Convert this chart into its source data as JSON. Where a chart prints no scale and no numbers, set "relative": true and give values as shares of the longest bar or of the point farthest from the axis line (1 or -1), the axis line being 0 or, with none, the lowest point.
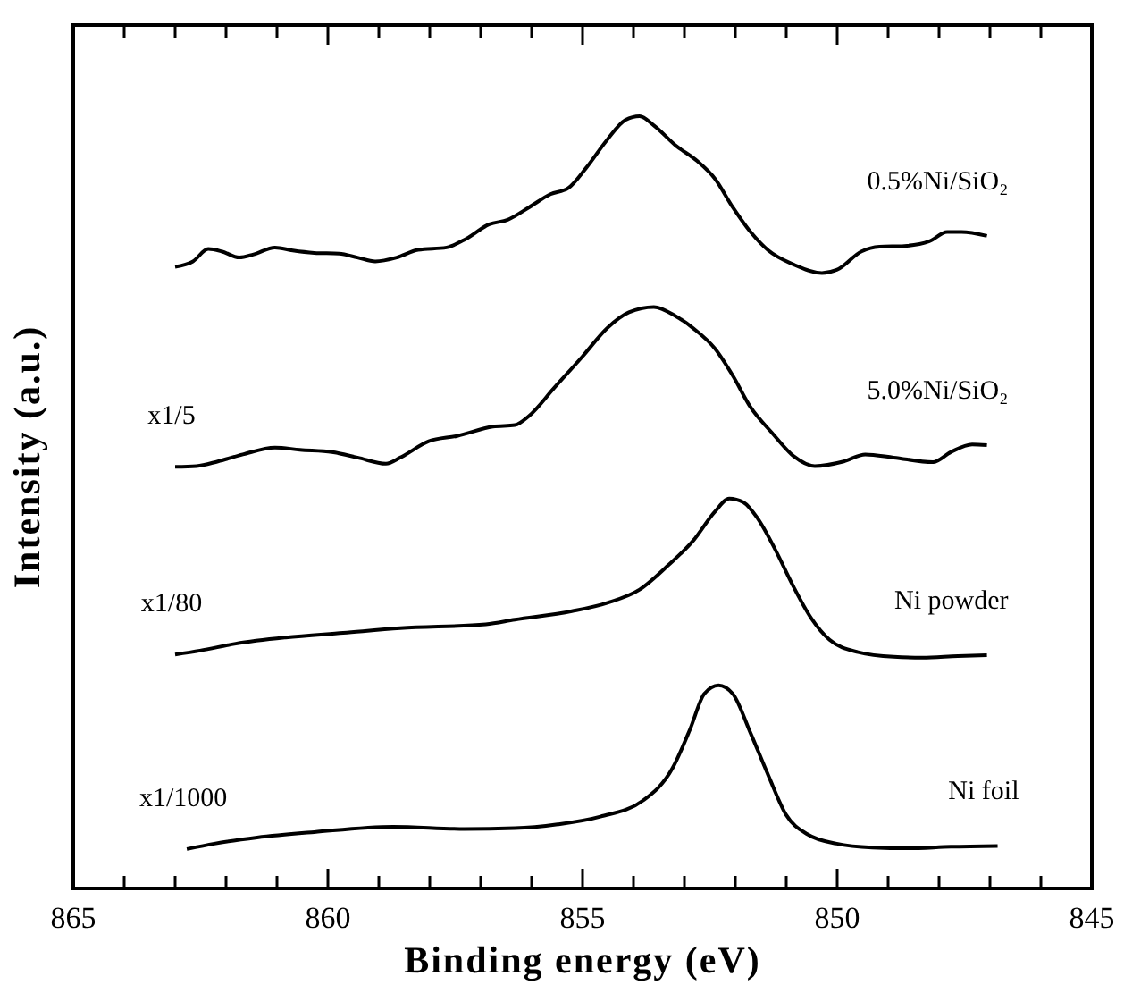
{
  "chart_data": {
    "type": "line",
    "relative": true,
    "xlabel": "Binding energy (eV)",
    "ylabel": "Intensity (a.u.)",
    "xlim": [
      865,
      845
    ],
    "xticks": [
      865,
      {
        "value": 864,
        "label": null
      },
      {
        "value": 863,
        "label": null
      },
      {
        "value": 862,
        "label": null
      },
      {
        "value": 861,
        "label": null
      },
      860,
      {
        "value": 859,
        "label": null
      },
      {
        "value": 858,
        "label": null
      },
      {
        "value": 857,
        "label": null
      },
      {
        "value": 856,
        "label": null
      },
      855,
      {
        "value": 854,
        "label": null
      },
      {
        "value": 853,
        "label": null
      },
      {
        "value": 852,
        "label": null
      },
      {
        "value": 851,
        "label": null
      },
      850,
      {
        "value": 849,
        "label": null
      },
      {
        "value": 848,
        "label": null
      },
      {
        "value": 847,
        "label": null
      },
      {
        "value": 846,
        "label": null
      },
      845
    ],
    "tick_labels": "x",
    "marker": "none",
    "series": [
      {
        "name": "0.5%Ni/SiO₂",
        "color": "#000000",
        "x": [
          863.0,
          862.65,
          862.35,
          862.09,
          861.74,
          861.46,
          861.04,
          860.69,
          860.27,
          859.78,
          859.42,
          859.07,
          858.65,
          858.23,
          857.67,
          857.32,
          856.83,
          856.47,
          856.05,
          855.63,
          855.28,
          854.93,
          854.51,
          854.16,
          853.88,
          853.6,
          853.17,
          852.75,
          852.4,
          852.05,
          851.7,
          851.35,
          850.86,
          850.3,
          850.01,
          849.52,
          849.17,
          848.68,
          848.19,
          847.84,
          847.56,
          847.06
        ],
        "values": [
          0.805,
          0.812,
          0.828,
          0.825,
          0.817,
          0.821,
          0.83,
          0.826,
          0.823,
          0.822,
          0.817,
          0.812,
          0.817,
          0.827,
          0.83,
          0.84,
          0.86,
          0.866,
          0.882,
          0.899,
          0.907,
          0.933,
          0.97,
          0.995,
          1.0,
          0.988,
          0.962,
          0.942,
          0.919,
          0.882,
          0.85,
          0.826,
          0.808,
          0.797,
          0.801,
          0.825,
          0.831,
          0.832,
          0.838,
          0.85,
          0.85,
          0.845
        ]
      },
      {
        "name": "5.0%Ni/SiO₂",
        "color": "#000000",
        "x": [
          863.0,
          862.58,
          862.16,
          861.67,
          861.04,
          860.55,
          859.92,
          859.42,
          858.86,
          858.58,
          858.02,
          857.46,
          856.76,
          856.33,
          856.05,
          855.56,
          855.0,
          854.51,
          854.09,
          853.6,
          853.17,
          852.82,
          852.4,
          852.05,
          851.7,
          851.28,
          850.86,
          850.44,
          849.87,
          849.45,
          848.89,
          848.12,
          847.77,
          847.35,
          847.06
        ],
        "values": [
          0.546,
          0.547,
          0.553,
          0.562,
          0.571,
          0.568,
          0.565,
          0.558,
          0.55,
          0.558,
          0.579,
          0.586,
          0.598,
          0.6,
          0.612,
          0.648,
          0.689,
          0.726,
          0.746,
          0.753,
          0.741,
          0.725,
          0.699,
          0.664,
          0.623,
          0.59,
          0.56,
          0.547,
          0.553,
          0.562,
          0.558,
          0.552,
          0.565,
          0.575,
          0.574
        ]
      },
      {
        "name": "Ni powder",
        "color": "#000000",
        "x": [
          863.0,
          862.51,
          861.81,
          860.83,
          859.7,
          858.58,
          856.9,
          856.33,
          855.21,
          854.51,
          853.88,
          853.31,
          852.82,
          852.4,
          852.12,
          851.84,
          851.56,
          851.21,
          850.86,
          850.51,
          850.15,
          849.59,
          848.89,
          848.33,
          847.63,
          847.06
        ],
        "values": [
          0.303,
          0.308,
          0.317,
          0.325,
          0.331,
          0.337,
          0.342,
          0.348,
          0.359,
          0.37,
          0.387,
          0.419,
          0.451,
          0.488,
          0.505,
          0.5,
          0.479,
          0.438,
          0.391,
          0.35,
          0.322,
          0.306,
          0.3,
          0.299,
          0.301,
          0.302
        ]
      },
      {
        "name": "Ni foil",
        "color": "#000000",
        "x": [
          862.77,
          862.23,
          861.39,
          860.27,
          858.72,
          857.32,
          856.33,
          855.49,
          854.65,
          853.81,
          853.24,
          852.89,
          852.61,
          852.33,
          852.05,
          851.7,
          851.35,
          851.0,
          850.58,
          850.01,
          849.31,
          848.61,
          847.77,
          846.85
        ],
        "values": [
          0.051,
          0.058,
          0.066,
          0.073,
          0.08,
          0.077,
          0.078,
          0.083,
          0.093,
          0.114,
          0.155,
          0.206,
          0.252,
          0.263,
          0.252,
          0.201,
          0.146,
          0.095,
          0.07,
          0.058,
          0.053,
          0.052,
          0.054,
          0.055
        ]
      }
    ],
    "annotations": [
      "x1/5",
      "x1/80",
      "x1/1000"
    ]
  }
}
